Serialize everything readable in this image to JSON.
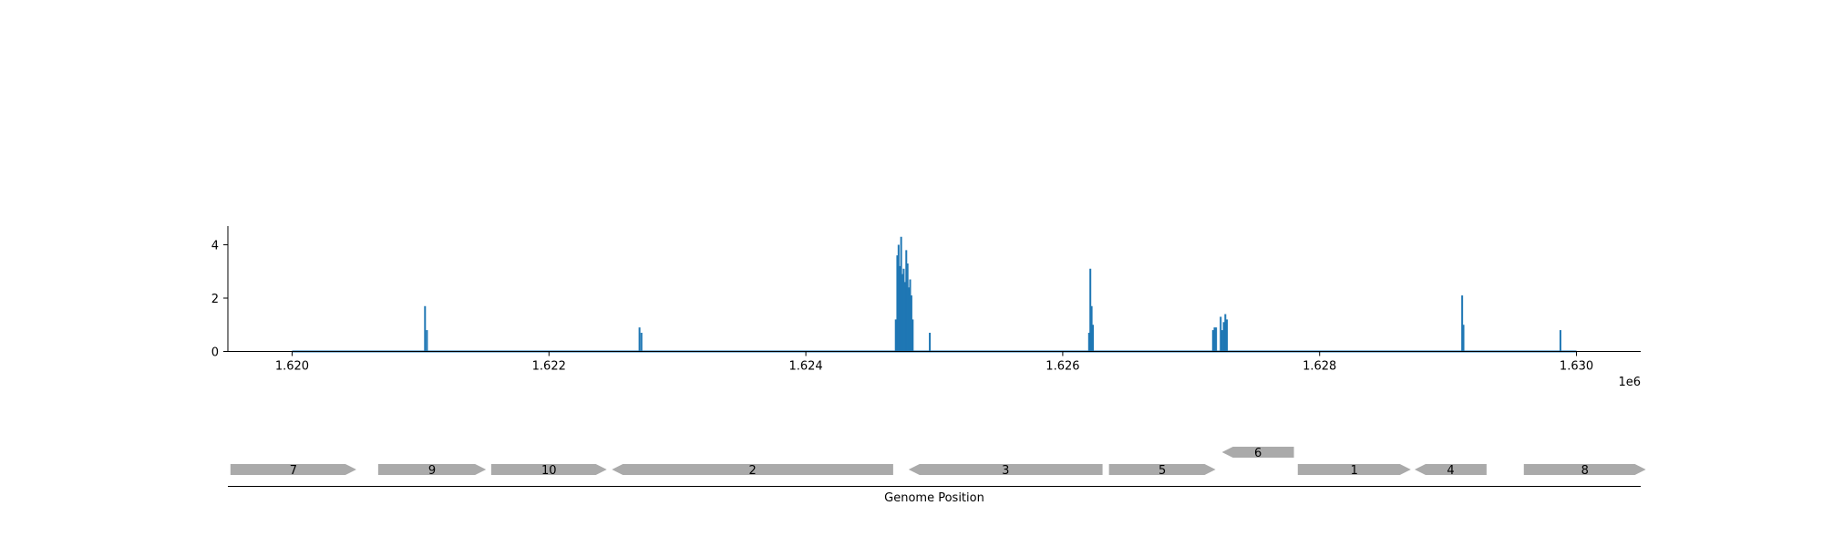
{
  "chart_data": [
    {
      "type": "line",
      "xlim": [
        1619500,
        1630500
      ],
      "ylim": [
        0,
        4.7
      ],
      "x_ticks": [
        1620000,
        1622000,
        1624000,
        1626000,
        1628000,
        1630000
      ],
      "x_tick_labels": [
        "1.620",
        "1.622",
        "1.624",
        "1.626",
        "1.628",
        "1.630"
      ],
      "x_offset_label": "1e6",
      "y_ticks": [
        0,
        2,
        4
      ],
      "y_tick_labels": [
        "0",
        "2",
        "4"
      ],
      "series_color": "#1f77b4",
      "baseline": {
        "x_start": 1620000,
        "x_end": 1630000
      },
      "peaks": [
        {
          "x": 1621035,
          "y": 1.7
        },
        {
          "x": 1621050,
          "y": 0.8
        },
        {
          "x": 1622705,
          "y": 0.9
        },
        {
          "x": 1622720,
          "y": 0.7
        },
        {
          "x": 1624700,
          "y": 1.2
        },
        {
          "x": 1624712,
          "y": 3.6
        },
        {
          "x": 1624722,
          "y": 4.0
        },
        {
          "x": 1624732,
          "y": 3.2
        },
        {
          "x": 1624742,
          "y": 4.3
        },
        {
          "x": 1624752,
          "y": 2.9
        },
        {
          "x": 1624762,
          "y": 3.1
        },
        {
          "x": 1624772,
          "y": 2.6
        },
        {
          "x": 1624782,
          "y": 3.8
        },
        {
          "x": 1624792,
          "y": 3.3
        },
        {
          "x": 1624802,
          "y": 2.4
        },
        {
          "x": 1624812,
          "y": 2.7
        },
        {
          "x": 1624822,
          "y": 2.1
        },
        {
          "x": 1624832,
          "y": 1.2
        },
        {
          "x": 1624965,
          "y": 0.7
        },
        {
          "x": 1626205,
          "y": 0.7
        },
        {
          "x": 1626215,
          "y": 3.1
        },
        {
          "x": 1626225,
          "y": 1.7
        },
        {
          "x": 1626235,
          "y": 1.0
        },
        {
          "x": 1627170,
          "y": 0.8
        },
        {
          "x": 1627182,
          "y": 0.9
        },
        {
          "x": 1627194,
          "y": 0.9
        },
        {
          "x": 1627230,
          "y": 1.3
        },
        {
          "x": 1627242,
          "y": 0.8
        },
        {
          "x": 1627254,
          "y": 1.1
        },
        {
          "x": 1627266,
          "y": 1.4
        },
        {
          "x": 1627278,
          "y": 1.2
        },
        {
          "x": 1629110,
          "y": 2.1
        },
        {
          "x": 1629120,
          "y": 1.0
        },
        {
          "x": 1629875,
          "y": 0.8
        }
      ]
    },
    {
      "type": "gene_track",
      "xlabel": "Genome Position",
      "xlim": [
        1619500,
        1630500
      ],
      "feature_color": "#aaaaaa",
      "genes": [
        {
          "label": "7",
          "start": 1619520,
          "end": 1620500,
          "strand": "+",
          "row": 0
        },
        {
          "label": "9",
          "start": 1620670,
          "end": 1621510,
          "strand": "+",
          "row": 0
        },
        {
          "label": "10",
          "start": 1621550,
          "end": 1622450,
          "strand": "+",
          "row": 0
        },
        {
          "label": "2",
          "start": 1622490,
          "end": 1624680,
          "strand": "-",
          "row": 0
        },
        {
          "label": "3",
          "start": 1624800,
          "end": 1626310,
          "strand": "-",
          "row": 0
        },
        {
          "label": "5",
          "start": 1626360,
          "end": 1627190,
          "strand": "+",
          "row": 0
        },
        {
          "label": "6",
          "start": 1627240,
          "end": 1627800,
          "strand": "-",
          "row": 1
        },
        {
          "label": "1",
          "start": 1627830,
          "end": 1628710,
          "strand": "+",
          "row": 0
        },
        {
          "label": "4",
          "start": 1628740,
          "end": 1629300,
          "strand": "-",
          "row": 0
        },
        {
          "label": "8",
          "start": 1629590,
          "end": 1630540,
          "strand": "+",
          "row": 0
        }
      ]
    }
  ]
}
